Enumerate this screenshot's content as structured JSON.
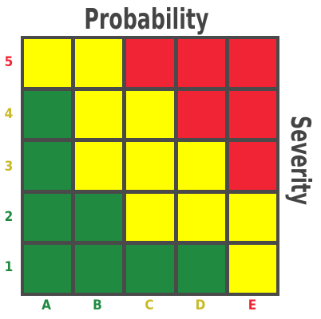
{
  "title": "Probability",
  "side_label": "Severity",
  "colors": {
    "green": "#1f8a40",
    "yellow": "#ffff00",
    "red": "#f12436",
    "olive": "#c9b924",
    "grid": "#4a4a4a",
    "text": "#444444"
  },
  "columns": [
    {
      "label": "A",
      "color": "#1f8a40"
    },
    {
      "label": "B",
      "color": "#1f8a40"
    },
    {
      "label": "C",
      "color": "#c9b924"
    },
    {
      "label": "D",
      "color": "#c9b924"
    },
    {
      "label": "E",
      "color": "#f12436"
    }
  ],
  "rows": [
    {
      "label": "5",
      "color": "#f12436",
      "cells": [
        "yellow",
        "yellow",
        "red",
        "red",
        "red"
      ]
    },
    {
      "label": "4",
      "color": "#c9b924",
      "cells": [
        "green",
        "yellow",
        "yellow",
        "red",
        "red"
      ]
    },
    {
      "label": "3",
      "color": "#c9b924",
      "cells": [
        "green",
        "yellow",
        "yellow",
        "yellow",
        "red"
      ]
    },
    {
      "label": "2",
      "color": "#1f8a40",
      "cells": [
        "green",
        "green",
        "yellow",
        "yellow",
        "yellow"
      ]
    },
    {
      "label": "1",
      "color": "#1f8a40",
      "cells": [
        "green",
        "green",
        "green",
        "green",
        "yellow"
      ]
    }
  ]
}
